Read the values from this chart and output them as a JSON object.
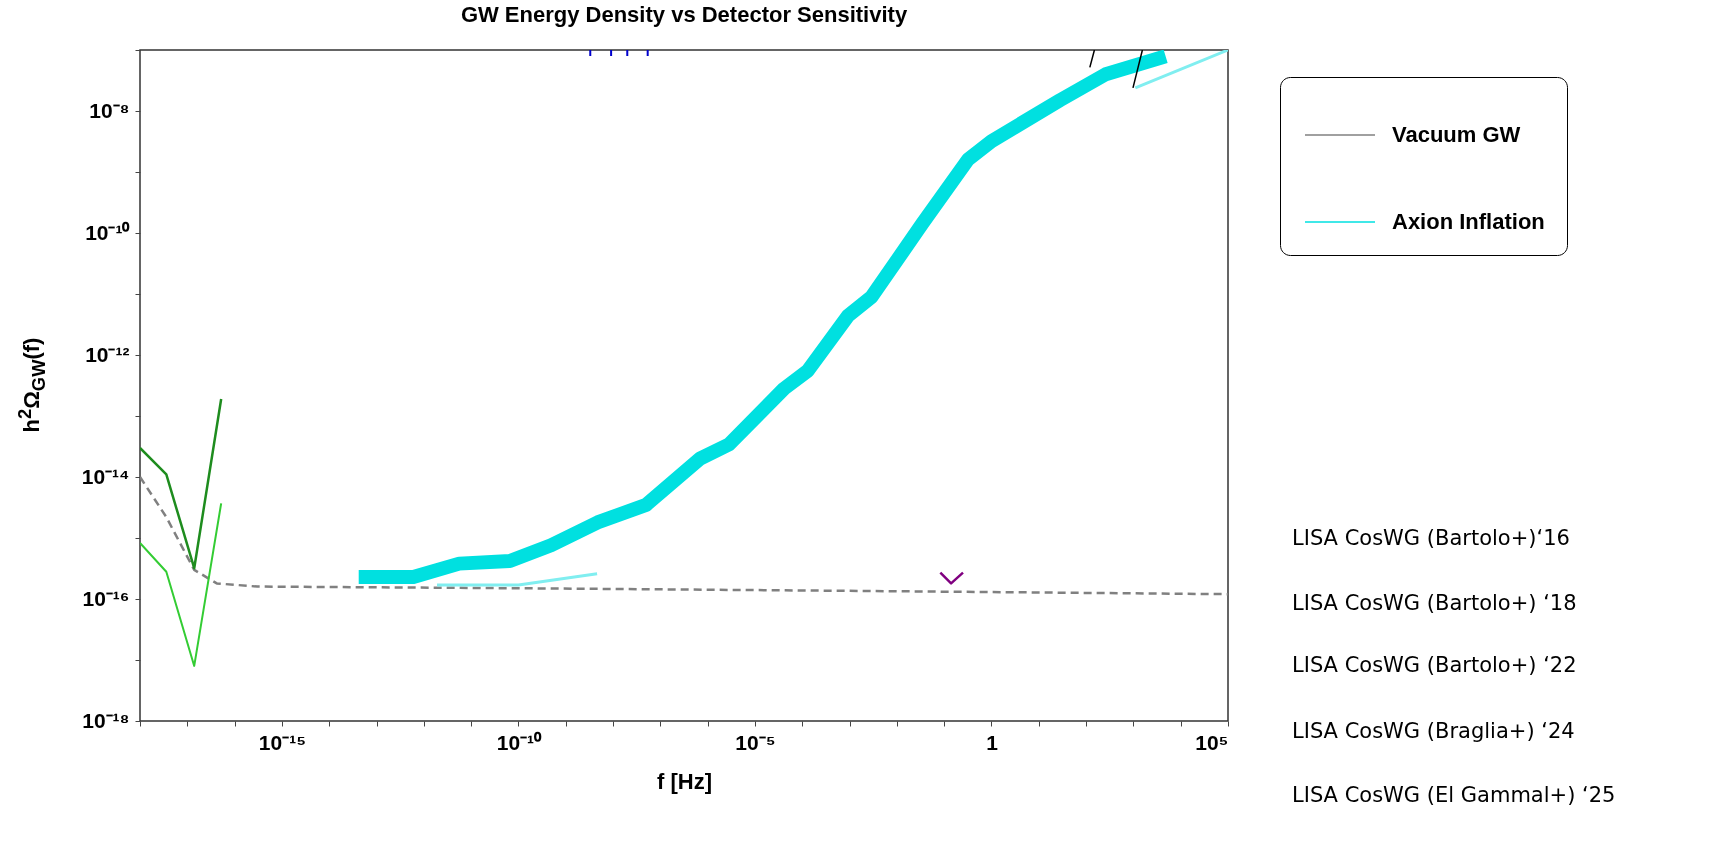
{
  "chart_data": {
    "type": "line",
    "title": "GW Energy Density vs Detector Sensitivity",
    "xlabel": "f [Hz]",
    "ylabel": "h$^{2}$Ω$_{GW}$(f)",
    "log": "xy",
    "legend": "top right",
    "xlim": [
      1e-18,
      100000.0
    ],
    "ylim": [
      1e-18,
      1e-07
    ],
    "xticks": [
      {
        "value": 1e-18,
        "label": null
      },
      {
        "value": 1e-17,
        "label": null
      },
      {
        "value": 1e-16,
        "label": null
      },
      {
        "value": 1e-15,
        "label": "10⁻¹⁵"
      },
      {
        "value": 1e-14,
        "label": null
      },
      {
        "value": 1e-13,
        "label": null
      },
      {
        "value": 1e-12,
        "label": null
      },
      {
        "value": 1e-11,
        "label": null
      },
      {
        "value": 1e-10,
        "label": "10⁻¹⁰"
      },
      {
        "value": 1e-09,
        "label": null
      },
      {
        "value": 1e-08,
        "label": null
      },
      {
        "value": 1e-07,
        "label": null
      },
      {
        "value": 1e-06,
        "label": null
      },
      {
        "value": 1e-05,
        "label": "10⁻⁵"
      },
      {
        "value": 0.0001,
        "label": null
      },
      {
        "value": 0.001,
        "label": null
      },
      {
        "value": 0.01,
        "label": null
      },
      {
        "value": 0.1,
        "label": null
      },
      1,
      {
        "value": 10,
        "label": null
      },
      {
        "value": 100,
        "label": null
      },
      {
        "value": 1000,
        "label": null
      },
      {
        "value": 10000,
        "label": null
      },
      {
        "value": 100000.0,
        "label": "10⁵"
      }
    ],
    "yticks": [
      {
        "value": 1e-18,
        "label": "10⁻¹⁸"
      },
      {
        "value": 1e-17,
        "label": null
      },
      {
        "value": 1e-16,
        "label": "10⁻¹⁶"
      },
      {
        "value": 1e-15,
        "label": null
      },
      {
        "value": 1e-14,
        "label": "10⁻¹⁴"
      },
      {
        "value": 1e-13,
        "label": null
      },
      {
        "value": 1e-12,
        "label": "10⁻¹²"
      },
      {
        "value": 1e-11,
        "label": null
      },
      {
        "value": 1e-10,
        "label": "10⁻¹⁰"
      },
      {
        "value": 1e-09,
        "label": null
      },
      {
        "value": 1e-08,
        "label": "10⁻⁸"
      },
      {
        "value": 1e-07,
        "label": null
      }
    ],
    "series": [
      {
        "name": "Vacuum GW",
        "color": "#808080",
        "line_style": "dashed",
        "x": [
          1e-18,
          3.6e-18,
          1.4e-17,
          4.2e-17,
          3e-16,
          1e-10,
          1e-05,
          1,
          100000.0
        ],
        "values": [
          1e-14,
          2.2e-15,
          3e-16,
          1.8e-16,
          1.6e-16,
          1.5e-16,
          1.4e-16,
          1.3e-16,
          1.2e-16
        ]
      },
      {
        "color": "#1e8c1e",
        "x": [
          1e-18,
          3.6e-18,
          1.4e-17,
          5.2e-17
        ],
        "values": [
          3e-14,
          1.1e-14,
          3.2e-16,
          1.9e-13
        ]
      },
      {
        "color": "#33cc33",
        "x": [
          1e-18,
          3.6e-18,
          1.4e-17,
          5.2e-17
        ],
        "values": [
          8.3e-16,
          2.8e-16,
          8e-18,
          3.7e-15
        ]
      },
      {
        "name": "Axion Inflation",
        "color": "#00e0e0",
        "x": [
          4.2e-14,
          6e-13,
          5.6e-12,
          6.6e-11,
          4.9e-10,
          4.7e-09,
          5e-08,
          6.9e-07,
          2.8e-06,
          4.1e-05,
          0.00013,
          0.00093,
          0.0029,
          0.034,
          0.32,
          1,
          28,
          260,
          4800
        ],
        "values": [
          2.3e-16,
          2.3e-16,
          3.8e-16,
          4.2e-16,
          7.6e-16,
          1.8e-15,
          3.5e-15,
          2e-14,
          3.4e-14,
          2.8e-13,
          5.5e-13,
          4.4e-12,
          8.9e-12,
          1.4e-10,
          1.6e-09,
          3.2e-09,
          1.5e-08,
          4e-08,
          7.9e-08
        ]
      },
      {
        "color": "#80eef0",
        "x": [
          1.9e-12,
          1e-10,
          4.6e-09,
          1e-06,
          1100,
          100000.0
        ],
        "values": [
          1.7e-16,
          1.7e-16,
          2.6e-16,
          null,
          2.4e-08,
          1e-07
        ]
      },
      {
        "color": "#800080",
        "x": [
          0.083,
          0.14,
          0.25
        ],
        "values": [
          2.7e-16,
          1.8e-16,
          2.7e-16
        ]
      },
      {
        "color": "#0000cc",
        "x": [
          3.3e-09,
          3.3e-09,
          5e-09,
          9.1e-09,
          9.1e-09,
          1.4e-08,
          2e-08,
          2e-08,
          3e-08,
          5.4e-08,
          5.4e-08
        ],
        "values": [
          1e-07,
          8e-08,
          null,
          1e-07,
          8e-08,
          null,
          1e-07,
          8e-08,
          null,
          1e-07,
          8e-08
        ]
      },
      {
        "color": "#000000",
        "x": [
          120,
          150,
          300,
          980,
          1550
        ],
        "values": [
          5.2e-08,
          1e-07,
          null,
          2.4e-08,
          1e-07
        ]
      }
    ],
    "annotations": [
      "LISA CosWG (Bartolo+)‘16",
      "LISA CosWG (Bartolo+) ‘18",
      "LISA CosWG (Bartolo+) ‘22",
      "LISA CosWG (Braglia+) ‘24",
      "LISA CosWG (El Gammal+) ‘25"
    ]
  }
}
